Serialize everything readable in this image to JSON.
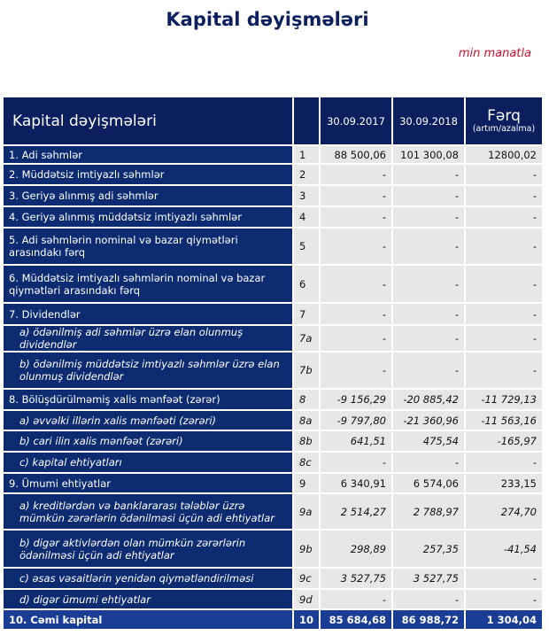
{
  "title": "Kapital dəyişmələri",
  "unit": "min manatla",
  "header": {
    "label": "Kapital dəyişmələri",
    "col1": "30.09.2017",
    "col2": "30.09.2018",
    "col3": "Fərq",
    "col3_sub": "(artım/azalma)"
  },
  "rows": [
    {
      "label": "1. Adi səhmlər",
      "num": "1",
      "v1": "88 500,06",
      "v2": "101 300,08",
      "v3": "12800,02"
    },
    {
      "label": "2. Müddətsiz imtiyazlı səhmlər",
      "num": "2",
      "v1": "-",
      "v2": "-",
      "v3": "-"
    },
    {
      "label": "3. Geriyə alınmış adi səhmlər",
      "num": "3",
      "v1": "-",
      "v2": "-",
      "v3": "-"
    },
    {
      "label": "4. Geriyə alınmış müddətsiz imtiyazlı səhmlər",
      "num": "4",
      "v1": "-",
      "v2": "-",
      "v3": "-"
    },
    {
      "label": "5. Adi səhmlərin nominal və bazar qiymətləri arasındakı fərq",
      "num": "5",
      "v1": "-",
      "v2": "-",
      "v3": "-"
    },
    {
      "label": "6. Müddətsiz imtiyazlı səhmlərin nominal və bazar qiymətləri arasındakı fərq",
      "num": "6",
      "v1": "-",
      "v2": "-",
      "v3": "-"
    },
    {
      "label": "7. Dividendlər",
      "num": "7",
      "v1": "-",
      "v2": "-",
      "v3": "-"
    },
    {
      "label": "a) ödənilmiş adi səhmlər üzrə elan olunmuş dividendlər",
      "num": "7a",
      "v1": "-",
      "v2": "-",
      "v3": "-",
      "sub": true
    },
    {
      "label": "b) ödənilmiş müddətsiz imtiyazlı  səhmlər üzrə elan olunmuş dividendlər",
      "num": "7b",
      "v1": "-",
      "v2": "-",
      "v3": "-",
      "sub": true
    },
    {
      "label": "8. Bölüşdürülməmiş xalis mənfəət (zərər)",
      "num": "8",
      "v1": "-9 156,29",
      "v2": "-20 885,42",
      "v3": "-11 729,13",
      "italicvals": true
    },
    {
      "label": "a) əvvəlki illərin xalis mənfəəti (zərəri)",
      "num": "8a",
      "v1": "-9 797,80",
      "v2": "-21 360,96",
      "v3": "-11 563,16",
      "sub": true
    },
    {
      "label": "b) cari ilin xalis mənfəət (zərəri)",
      "num": "8b",
      "v1": "641,51",
      "v2": "475,54",
      "v3": "-165,97",
      "sub": true
    },
    {
      "label": "c) kapital ehtiyatları",
      "num": "8c",
      "v1": "-",
      "v2": "-",
      "v3": "-",
      "sub": true
    },
    {
      "label": "9. Ümumi ehtiyatlar",
      "num": "9",
      "v1": "6 340,91",
      "v2": "6 574,06",
      "v3": "233,15"
    },
    {
      "label": "a) kreditlərdən və banklararası tələblər üzrə mümkün zərərlərin ödənilməsi üçün adi ehtiyatlar",
      "num": "9a",
      "v1": "2 514,27",
      "v2": "2 788,97",
      "v3": "274,70",
      "sub": true
    },
    {
      "label": "b) digər aktivlərdən olan mümkün zərərlərin ödənilməsi üçün adi ehtiyatlar",
      "num": "9b",
      "v1": "298,89",
      "v2": "257,35",
      "v3": "-41,54",
      "sub": true
    },
    {
      "label": "c) əsas vəsaitlərin yenidən qiymətləndirilməsi",
      "num": "9c",
      "v1": "3 527,75",
      "v2": "3 527,75",
      "v3": "-",
      "sub": true
    },
    {
      "label": "d) digər ümumi ehtiyatlar",
      "num": "9d",
      "v1": "-",
      "v2": "-",
      "v3": "-",
      "sub": true
    },
    {
      "label": "10. Cəmi kapital",
      "num": "10",
      "v1": "85 684,68",
      "v2": "86 988,72",
      "v3": "1 304,04",
      "total": true
    }
  ]
}
